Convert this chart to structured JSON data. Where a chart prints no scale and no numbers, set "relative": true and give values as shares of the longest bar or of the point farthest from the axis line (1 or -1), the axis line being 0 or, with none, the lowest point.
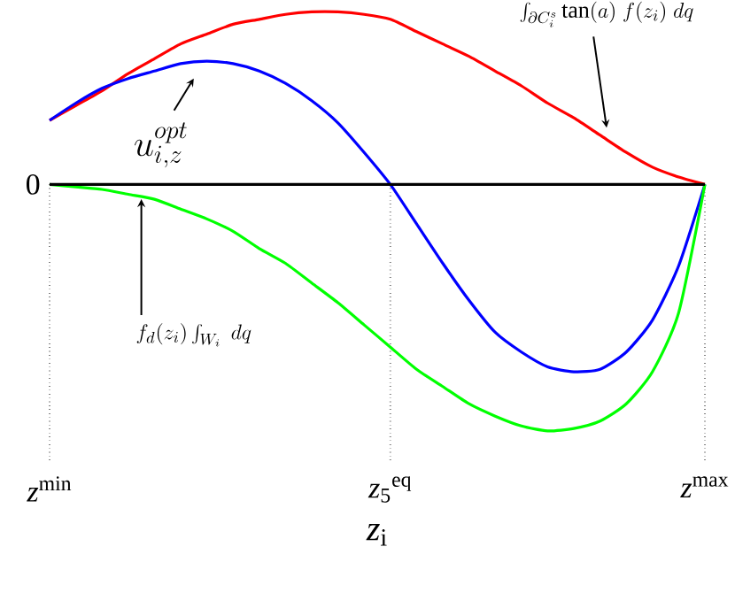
{
  "chart_data": {
    "type": "line",
    "relative": true,
    "xlabel": "*z*$_{i}$",
    "categories": [
      "*z*$^{min}$",
      null,
      null,
      null,
      null,
      null,
      null,
      null,
      null,
      null,
      null,
      null,
      null,
      "*z*$_{5}$$^{eq}$",
      null,
      null,
      null,
      null,
      null,
      null,
      null,
      null,
      null,
      null,
      null,
      "*z*$^{max}$"
    ],
    "series": [
      {
        "color": "#ff0000",
        "values": [
          0.26,
          0.32,
          0.38,
          0.45,
          0.51,
          0.57,
          0.61,
          0.65,
          0.67,
          0.69,
          0.7,
          0.7,
          0.69,
          0.67,
          0.62,
          0.57,
          0.52,
          0.46,
          0.4,
          0.33,
          0.27,
          0.2,
          0.13,
          0.07,
          0.03,
          0
        ]
      },
      {
        "color": "#0000ff",
        "values": [
          0.26,
          0.33,
          0.39,
          0.43,
          0.46,
          0.49,
          0.5,
          0.49,
          0.46,
          0.41,
          0.34,
          0.25,
          0.13,
          0,
          -0.16,
          -0.32,
          -0.47,
          -0.6,
          -0.68,
          -0.74,
          -0.76,
          -0.75,
          -0.68,
          -0.55,
          -0.33,
          0
        ]
      },
      {
        "color": "#00ff00",
        "values": [
          0,
          -0.01,
          -0.02,
          -0.04,
          -0.06,
          -0.1,
          -0.14,
          -0.19,
          -0.26,
          -0.32,
          -0.4,
          -0.48,
          -0.57,
          -0.66,
          -0.75,
          -0.82,
          -0.89,
          -0.94,
          -0.98,
          -1,
          -0.99,
          -0.96,
          -0.89,
          -0.76,
          -0.52,
          0
        ]
      }
    ],
    "annotations": [
      "0",
      "u_{i,z}^{opt}",
      "\\int_{\\partial C_i^s} \\tan(a)\\; f(z_i)\\; dq",
      "f_d(z_i) \\int_{W_i} \\; dq"
    ]
  }
}
